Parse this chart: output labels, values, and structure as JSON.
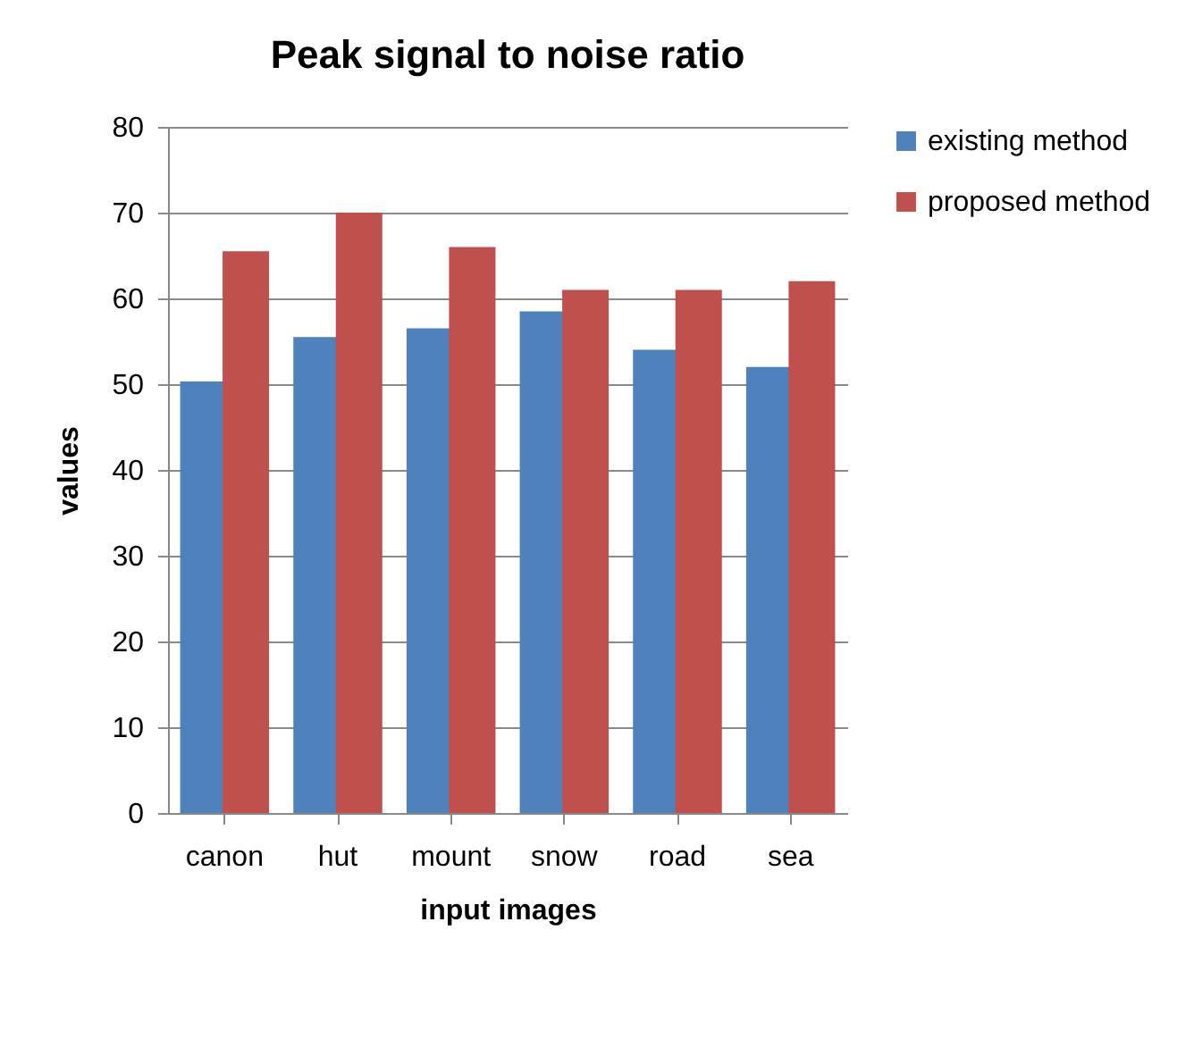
{
  "chart_data": {
    "type": "bar",
    "title": "Peak signal to noise ratio",
    "xlabel": "input images",
    "ylabel": "values",
    "categories": [
      "canon",
      "hut",
      "mount",
      "snow",
      "road",
      "sea"
    ],
    "series": [
      {
        "name": "existing method",
        "color": "#4f81bd",
        "values": [
          50.3,
          55.5,
          56.5,
          58.5,
          54,
          52
        ]
      },
      {
        "name": "proposed method",
        "color": "#c0504d",
        "values": [
          65.5,
          70,
          66,
          61,
          61,
          62
        ]
      }
    ],
    "ylim": [
      0,
      80
    ],
    "yticks": [
      0,
      10,
      20,
      30,
      40,
      50,
      60,
      70,
      80
    ],
    "grid": "y",
    "legend": "right"
  }
}
